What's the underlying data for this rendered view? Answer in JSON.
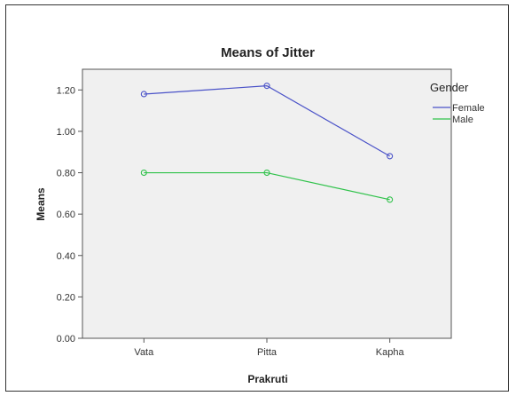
{
  "chart_data": {
    "type": "line",
    "title": "Means of Jitter",
    "xlabel": "Prakruti",
    "ylabel": "Means",
    "categories": [
      "Vata",
      "Pitta",
      "Kapha"
    ],
    "ylim": [
      0,
      1.3
    ],
    "yticks": [
      "0.00",
      "0.20",
      "0.40",
      "0.60",
      "0.80",
      "1.00",
      "1.20"
    ],
    "legend": {
      "title": "Gender",
      "placement": "right"
    },
    "series": [
      {
        "name": "Female",
        "color": "#4a52c8",
        "values": [
          1.18,
          1.22,
          0.88
        ]
      },
      {
        "name": "Male",
        "color": "#2fc24a",
        "values": [
          0.8,
          0.8,
          0.67
        ]
      }
    ],
    "grid": false
  }
}
